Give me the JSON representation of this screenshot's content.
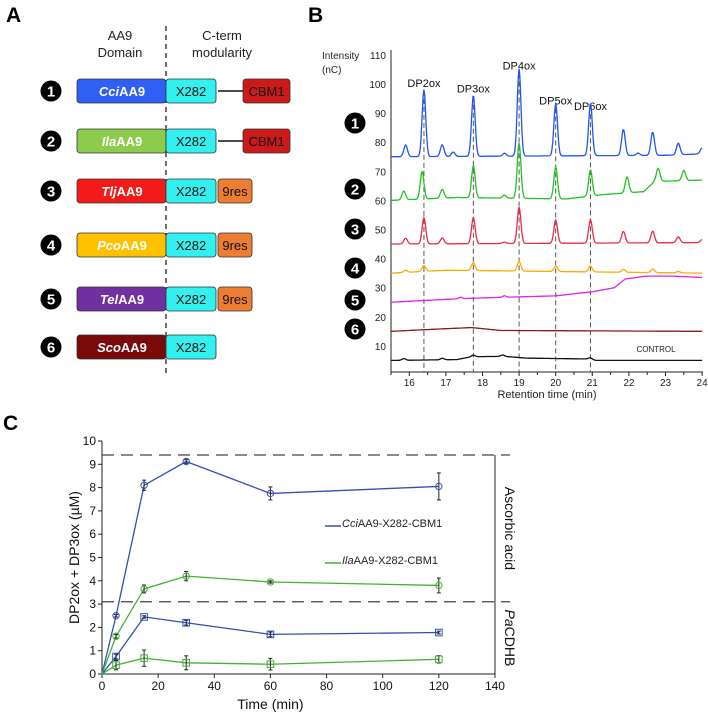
{
  "panel_labels": {
    "a": "A",
    "b": "B",
    "c": "C"
  },
  "panel_a": {
    "header_domain": [
      "AA9",
      "Domain"
    ],
    "header_cterm": [
      "C-term",
      "modularity"
    ],
    "rows": [
      {
        "num": "1",
        "prefix": "Cci",
        "suffix": "AA9",
        "color": "#2f5ff5",
        "modules": [
          "X282",
          "linker",
          "CBM1"
        ]
      },
      {
        "num": "2",
        "prefix": "Ila",
        "suffix": "AA9",
        "color": "#8ccc4c",
        "modules": [
          "X282",
          "linker",
          "CBM1"
        ]
      },
      {
        "num": "3",
        "prefix": "Tlj",
        "suffix": "AA9",
        "color": "#f51a1a",
        "modules": [
          "X282",
          "9res"
        ]
      },
      {
        "num": "4",
        "prefix": "Pco",
        "suffix": "AA9",
        "color": "#ffc000",
        "modules": [
          "X282",
          "9res"
        ]
      },
      {
        "num": "5",
        "prefix": "Tel",
        "suffix": "AA9",
        "color": "#7030a0",
        "modules": [
          "X282",
          "9res"
        ]
      },
      {
        "num": "6",
        "prefix": "Sco",
        "suffix": "AA9",
        "color": "#7a0a0a",
        "modules": [
          "X282"
        ]
      }
    ],
    "module_colors": {
      "X282": "#33f0f0",
      "CBM1": "#cc1a1a",
      "9res": "#ed7d31"
    }
  },
  "chart_data": [
    {
      "type": "line",
      "panel": "B",
      "ylabel": [
        "Intensity",
        "(nC)"
      ],
      "xlabel": "Retention time (min)",
      "xlim": [
        15.5,
        24
      ],
      "ylim": [
        1,
        112
      ],
      "xticks": [
        16,
        17,
        18,
        19,
        20,
        21,
        22,
        23,
        24
      ],
      "yticks": [
        10,
        20,
        30,
        40,
        50,
        60,
        70,
        80,
        90,
        100,
        110
      ],
      "peak_markers": [
        {
          "label": "DP2ox",
          "x": 16.4,
          "label_y": 99
        },
        {
          "label": "DP3ox",
          "x": 17.75,
          "label_y": 97
        },
        {
          "label": "DP4ox",
          "x": 19.0,
          "label_y": 105
        },
        {
          "label": "DP5ox",
          "x": 20.0,
          "label_y": 93
        },
        {
          "label": "DP6ox",
          "x": 20.95,
          "label_y": 91
        }
      ],
      "series": [
        {
          "name": "1",
          "color": "#2255ee",
          "baseline": [
            [
              15.5,
              75
            ],
            [
              23,
              75.5
            ],
            [
              24,
              76
            ]
          ],
          "peaks": [
            [
              15.9,
              4
            ],
            [
              16.4,
              23
            ],
            [
              16.9,
              4
            ],
            [
              17.2,
              1.5
            ],
            [
              17.75,
              21
            ],
            [
              18.6,
              1
            ],
            [
              19.0,
              30
            ],
            [
              20.0,
              18
            ],
            [
              20.95,
              18
            ],
            [
              21.85,
              9
            ],
            [
              22.25,
              0.8
            ],
            [
              22.65,
              8
            ],
            [
              23.35,
              4
            ],
            [
              24.0,
              2
            ]
          ]
        },
        {
          "name": "2",
          "color": "#22c322",
          "baseline": [
            [
              15.5,
              60
            ],
            [
              17.3,
              61
            ],
            [
              20.3,
              60.5
            ],
            [
              21.3,
              62
            ],
            [
              22.4,
              63
            ],
            [
              22.7,
              66.5
            ],
            [
              24,
              67
            ]
          ],
          "peaks": [
            [
              15.85,
              3
            ],
            [
              16.35,
              9.5
            ],
            [
              16.9,
              3
            ],
            [
              17.75,
              11
            ],
            [
              18.6,
              1
            ],
            [
              19.0,
              19
            ],
            [
              20.0,
              11
            ],
            [
              20.95,
              9
            ],
            [
              21.95,
              5.5
            ],
            [
              22.8,
              4.5
            ],
            [
              23.5,
              3.5
            ]
          ]
        },
        {
          "name": "3",
          "color": "#ee2a44",
          "baseline": [
            [
              15.5,
              45
            ],
            [
              24,
              45.5
            ]
          ],
          "peaks": [
            [
              15.9,
              2
            ],
            [
              16.4,
              9
            ],
            [
              16.9,
              2
            ],
            [
              17.75,
              9
            ],
            [
              18.6,
              0.5
            ],
            [
              19.0,
              12.5
            ],
            [
              20.0,
              8
            ],
            [
              20.95,
              8
            ],
            [
              21.85,
              4
            ],
            [
              22.65,
              4
            ],
            [
              23.35,
              2
            ],
            [
              24.0,
              1
            ]
          ]
        },
        {
          "name": "4",
          "color": "#ffaa00",
          "baseline": [
            [
              15.5,
              35
            ],
            [
              17,
              36
            ],
            [
              24,
              35
            ]
          ],
          "peaks": [
            [
              15.9,
              0.7
            ],
            [
              16.4,
              2
            ],
            [
              17.75,
              2.8
            ],
            [
              19.0,
              3.3
            ],
            [
              20.0,
              1.8
            ],
            [
              20.95,
              2
            ],
            [
              21.85,
              1
            ],
            [
              22.65,
              1.2
            ],
            [
              23.35,
              0.5
            ]
          ]
        },
        {
          "name": "5",
          "color": "#dd22ee",
          "baseline": [
            [
              15.5,
              25
            ],
            [
              17,
              26
            ],
            [
              18,
              26.5
            ],
            [
              20,
              27.2
            ],
            [
              21,
              28.6
            ],
            [
              21.6,
              30
            ],
            [
              21.9,
              33
            ],
            [
              22.5,
              34
            ],
            [
              23.2,
              34
            ],
            [
              24,
              33.5
            ]
          ],
          "peaks": [
            [
              17.4,
              0.5
            ],
            [
              18.6,
              0.5
            ]
          ]
        },
        {
          "name": "6",
          "color": "#8b1a1a",
          "baseline": [
            [
              15.5,
              15
            ],
            [
              16.8,
              15.8
            ],
            [
              17.7,
              16.3
            ],
            [
              18.5,
              15.3
            ],
            [
              24,
              15
            ]
          ],
          "peaks": []
        },
        {
          "name": "CONTROL",
          "color": "#111111",
          "baseline": [
            [
              15.5,
              5
            ],
            [
              17.3,
              5.3
            ],
            [
              17.7,
              6.3
            ],
            [
              18.6,
              6.4
            ],
            [
              19.2,
              5.8
            ],
            [
              20.9,
              5.5
            ],
            [
              21.1,
              5
            ],
            [
              24,
              5
            ]
          ],
          "peaks": [
            [
              15.85,
              0.6
            ],
            [
              16.9,
              0.5
            ],
            [
              17.75,
              0.5
            ],
            [
              18.55,
              0.5
            ],
            [
              20.95,
              0.5
            ]
          ]
        }
      ],
      "control_label": "CONTROL"
    },
    {
      "type": "line",
      "panel": "C",
      "xlabel": "Time (min)",
      "ylabel": "DP2ox + DP3ox (µM)",
      "xlim": [
        0,
        140
      ],
      "ylim": [
        0,
        10
      ],
      "xticks": [
        0,
        20,
        40,
        60,
        80,
        100,
        120,
        140
      ],
      "yticks": [
        0,
        1,
        2,
        3,
        4,
        5,
        6,
        7,
        8,
        9,
        10
      ],
      "region_lines": [
        9.4,
        3.1
      ],
      "regions": [
        {
          "label": "Ascorbic acid",
          "from": 3.1,
          "to": 9.4
        },
        {
          "label_prefix": "Pa",
          "label_suffix": "CDHB",
          "from": 0,
          "to": 3.1
        }
      ],
      "legend": [
        {
          "prefix": "Cci",
          "suffix": "AA9-X282-CBM1",
          "color": "#3350b0"
        },
        {
          "prefix": "Ila",
          "suffix": "AA9-X282-CBM1",
          "color": "#44b034"
        }
      ],
      "series": [
        {
          "name": "CciAA9-X282-CBM1 ascorbic acid",
          "color": "#3350b0",
          "marker": "circle",
          "x": [
            0,
            5,
            15,
            30,
            60,
            120
          ],
          "y": [
            0,
            2.5,
            8.1,
            9.12,
            7.75,
            8.05
          ],
          "err": [
            0,
            0.05,
            0.22,
            0.08,
            0.28,
            0.58
          ]
        },
        {
          "name": "IlaAA9-X282-CBM1 ascorbic acid",
          "color": "#44b034",
          "marker": "circle",
          "x": [
            0,
            5,
            15,
            30,
            60,
            120
          ],
          "y": [
            0,
            1.62,
            3.65,
            4.2,
            3.95,
            3.8
          ],
          "err": [
            0,
            0.08,
            0.17,
            0.2,
            0.05,
            0.32
          ]
        },
        {
          "name": "CciAA9-X282-CBM1 PaCDHB",
          "color": "#3350b0",
          "marker": "square",
          "x": [
            0,
            5,
            15,
            30,
            60,
            120
          ],
          "y": [
            0,
            0.75,
            2.45,
            2.2,
            1.7,
            1.78
          ],
          "err": [
            0,
            0.1,
            0.05,
            0.1,
            0.1,
            0.06
          ]
        },
        {
          "name": "IlaAA9-X282-CBM1 PaCDHB",
          "color": "#44b034",
          "marker": "square",
          "x": [
            0,
            5,
            15,
            30,
            60,
            120
          ],
          "y": [
            0,
            0.38,
            0.68,
            0.48,
            0.42,
            0.63
          ],
          "err": [
            0,
            0.2,
            0.35,
            0.3,
            0.25,
            0.16
          ]
        }
      ]
    }
  ]
}
